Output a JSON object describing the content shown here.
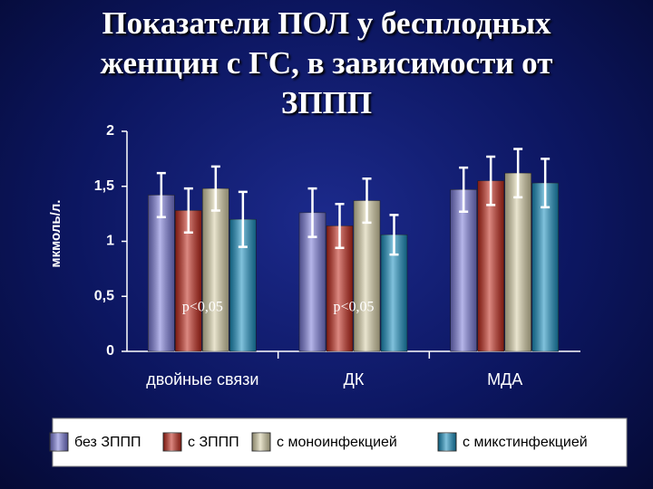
{
  "chart_data": {
    "type": "bar",
    "title": "Показатели ПОЛ у бесплодных женщин с ГС, в зависимости от ЗППП",
    "y_label": "мкмоль/л.",
    "categories": [
      "двойные связи",
      "ДК",
      "МДА"
    ],
    "series": [
      {
        "name": "без ЗППП",
        "color": "#7a7ad8",
        "values": [
          1.42,
          1.26,
          1.47
        ],
        "errors": [
          0.2,
          0.22,
          0.2
        ]
      },
      {
        "name": "с ЗППП",
        "color": "#c0281a",
        "values": [
          1.28,
          1.14,
          1.55
        ],
        "errors": [
          0.2,
          0.2,
          0.22
        ]
      },
      {
        "name": "с моноинфекцией",
        "color": "#d8d0a8",
        "values": [
          1.48,
          1.37,
          1.62
        ],
        "errors": [
          0.2,
          0.2,
          0.22
        ]
      },
      {
        "name": "с микстинфекцией",
        "color": "#1a90c0",
        "values": [
          1.2,
          1.06,
          1.53
        ],
        "errors": [
          0.25,
          0.18,
          0.22
        ]
      }
    ],
    "ylim": [
      0,
      2
    ],
    "yticks": [
      0,
      {
        "value": 0.5,
        "label": "0,5"
      },
      1,
      {
        "value": 1.5,
        "label": "1,5"
      },
      2
    ],
    "annotations": [
      "p<0,05",
      "p<0,05"
    ],
    "legend": "bottom"
  }
}
